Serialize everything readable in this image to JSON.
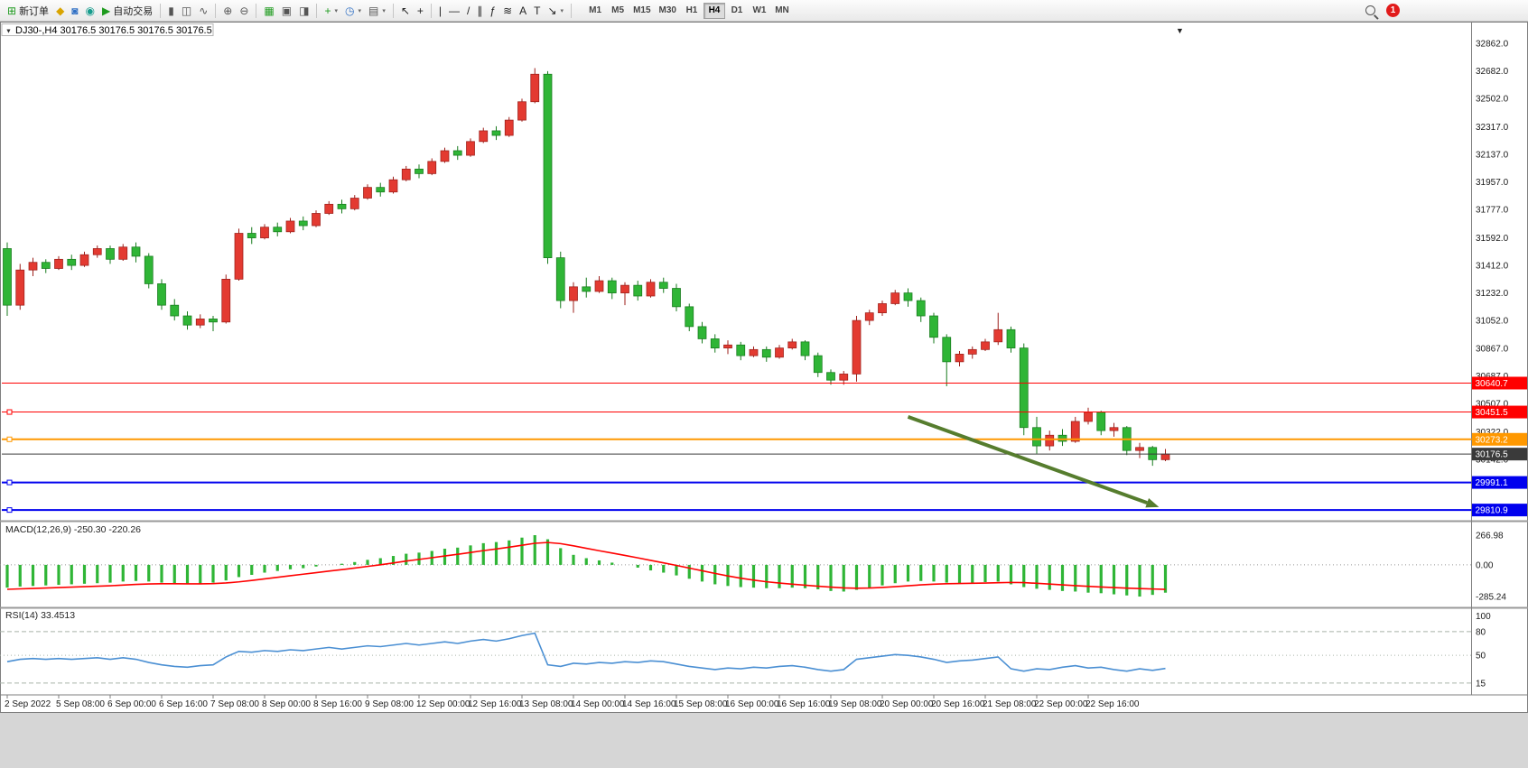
{
  "app": {
    "badge_count": "1"
  },
  "toolbar": {
    "groups": [
      [
        {
          "name": "new-order",
          "glyph": "⊞",
          "color": "#1e9b1e",
          "label": "新订单"
        },
        {
          "name": "mql5-wizard",
          "glyph": "◆",
          "color": "#d9a400"
        },
        {
          "name": "open-profile",
          "glyph": "◙",
          "color": "#2f6fc4"
        },
        {
          "name": "community",
          "glyph": "◉",
          "color": "#169c8d"
        },
        {
          "name": "autotrading",
          "glyph": "▶",
          "color": "#1e9b1e",
          "label": "自动交易"
        }
      ],
      [
        {
          "name": "bar-chart-mode",
          "glyph": "▮",
          "color": "#555"
        },
        {
          "name": "candlestick-mode",
          "glyph": "◫",
          "color": "#555"
        },
        {
          "name": "line-chart-mode",
          "glyph": "∿",
          "color": "#555"
        }
      ],
      [
        {
          "name": "zoom-in",
          "glyph": "⊕",
          "color": "#555"
        },
        {
          "name": "zoom-out",
          "glyph": "⊖",
          "color": "#555"
        }
      ],
      [
        {
          "name": "tile-windows",
          "glyph": "▦",
          "color": "#1e9b1e"
        },
        {
          "name": "new-chart",
          "glyph": "▣",
          "color": "#555"
        },
        {
          "name": "chart-profiles",
          "glyph": "◨",
          "color": "#555"
        }
      ],
      [
        {
          "name": "indicators",
          "glyph": "+",
          "color": "#1e9b1e",
          "dropdown": true
        },
        {
          "name": "periods",
          "glyph": "◷",
          "color": "#2f6fc4",
          "dropdown": true
        },
        {
          "name": "templates",
          "glyph": "▤",
          "color": "#555",
          "dropdown": true
        }
      ],
      [
        {
          "name": "cursor",
          "glyph": "↖",
          "color": "#222"
        },
        {
          "name": "crosshair",
          "glyph": "+",
          "color": "#222"
        }
      ],
      [
        {
          "name": "vertical-line",
          "glyph": "|",
          "color": "#222"
        },
        {
          "name": "horizontal-line",
          "glyph": "—",
          "color": "#222"
        },
        {
          "name": "trendline",
          "glyph": "/",
          "color": "#222"
        },
        {
          "name": "equidistant-channel",
          "glyph": "∥",
          "color": "#222"
        },
        {
          "name": "fibonacci",
          "glyph": "ƒ",
          "color": "#222"
        },
        {
          "name": "shapes",
          "glyph": "≋",
          "color": "#222"
        },
        {
          "name": "text",
          "glyph": "A",
          "color": "#222"
        },
        {
          "name": "text-label",
          "glyph": "T",
          "color": "#222"
        },
        {
          "name": "arrows",
          "glyph": "↘",
          "color": "#222",
          "dropdown": true
        }
      ]
    ],
    "timeframes": [
      "M1",
      "M5",
      "M15",
      "M30",
      "H1",
      "H4",
      "D1",
      "W1",
      "MN"
    ],
    "active_timeframe": "H4"
  },
  "chart": {
    "symbol": "DJ30-",
    "timeframe": "H4",
    "full_title": "DJ30-,H4 30176.5 30176.5 30176.5 30176.5",
    "marker_glyph": "▼"
  },
  "chart_data": [
    {
      "type": "candlestick",
      "symbol": "DJ30-",
      "timeframe": "H4",
      "ylim": [
        29735,
        32909
      ],
      "colors": {
        "up": "#e33a31",
        "down": "#2fb536",
        "up_edge": "#9c1f1a",
        "down_edge": "#177a1d"
      },
      "price_axis_labels": [
        "32862.0",
        "32682.0",
        "32502.0",
        "32317.0",
        "32137.0",
        "31957.0",
        "31777.0",
        "31592.0",
        "31412.0",
        "31232.0",
        "31052.0",
        "30867.0",
        "30687.0",
        "30507.0",
        "30322.0",
        "30142.0"
      ],
      "time_axis_labels": [
        [
          0,
          "2 Sep 2022"
        ],
        [
          4,
          "5 Sep 08:00"
        ],
        [
          8,
          "6 Sep 00:00"
        ],
        [
          12,
          "6 Sep 16:00"
        ],
        [
          16,
          "7 Sep 08:00"
        ],
        [
          20,
          "8 Sep 00:00"
        ],
        [
          24,
          "8 Sep 16:00"
        ],
        [
          28,
          "9 Sep 08:00"
        ],
        [
          32,
          "12 Sep 00:00"
        ],
        [
          36,
          "12 Sep 16:00"
        ],
        [
          40,
          "13 Sep 08:00"
        ],
        [
          44,
          "14 Sep 00:00"
        ],
        [
          48,
          "14 Sep 16:00"
        ],
        [
          52,
          "15 Sep 08:00"
        ],
        [
          56,
          "16 Sep 00:00"
        ],
        [
          60,
          "16 Sep 16:00"
        ],
        [
          64,
          "19 Sep 08:00"
        ],
        [
          68,
          "20 Sep 00:00"
        ],
        [
          72,
          "20 Sep 16:00"
        ],
        [
          76,
          "21 Sep 08:00"
        ],
        [
          80,
          "22 Sep 00:00"
        ],
        [
          84,
          "22 Sep 16:00"
        ]
      ],
      "bars": [
        [
          31520,
          31560,
          31080,
          31150
        ],
        [
          31150,
          31420,
          31120,
          31380
        ],
        [
          31380,
          31460,
          31340,
          31430
        ],
        [
          31430,
          31450,
          31360,
          31390
        ],
        [
          31390,
          31470,
          31380,
          31450
        ],
        [
          31450,
          31480,
          31380,
          31410
        ],
        [
          31410,
          31500,
          31400,
          31480
        ],
        [
          31480,
          31540,
          31460,
          31520
        ],
        [
          31520,
          31540,
          31420,
          31450
        ],
        [
          31450,
          31550,
          31440,
          31530
        ],
        [
          31530,
          31560,
          31430,
          31470
        ],
        [
          31470,
          31490,
          31260,
          31290
        ],
        [
          31290,
          31320,
          31120,
          31150
        ],
        [
          31150,
          31190,
          31050,
          31080
        ],
        [
          31080,
          31110,
          30990,
          31020
        ],
        [
          31020,
          31090,
          31000,
          31060
        ],
        [
          31060,
          31080,
          30980,
          31040
        ],
        [
          31040,
          31350,
          31030,
          31320
        ],
        [
          31320,
          31650,
          31310,
          31620
        ],
        [
          31620,
          31660,
          31550,
          31590
        ],
        [
          31590,
          31680,
          31580,
          31660
        ],
        [
          31660,
          31690,
          31600,
          31630
        ],
        [
          31630,
          31720,
          31620,
          31700
        ],
        [
          31700,
          31730,
          31640,
          31670
        ],
        [
          31670,
          31770,
          31660,
          31750
        ],
        [
          31750,
          31830,
          31740,
          31810
        ],
        [
          31810,
          31840,
          31750,
          31780
        ],
        [
          31780,
          31870,
          31770,
          31850
        ],
        [
          31850,
          31940,
          31840,
          31920
        ],
        [
          31920,
          31950,
          31860,
          31890
        ],
        [
          31890,
          31990,
          31880,
          31970
        ],
        [
          31970,
          32060,
          31960,
          32040
        ],
        [
          32040,
          32070,
          31980,
          32010
        ],
        [
          32010,
          32110,
          32000,
          32090
        ],
        [
          32090,
          32180,
          32080,
          32160
        ],
        [
          32160,
          32190,
          32100,
          32130
        ],
        [
          32130,
          32240,
          32120,
          32220
        ],
        [
          32220,
          32310,
          32210,
          32290
        ],
        [
          32290,
          32320,
          32230,
          32260
        ],
        [
          32260,
          32380,
          32250,
          32360
        ],
        [
          32360,
          32500,
          32350,
          32480
        ],
        [
          32480,
          32700,
          32470,
          32660
        ],
        [
          32660,
          32680,
          31420,
          31460
        ],
        [
          31460,
          31500,
          31130,
          31180
        ],
        [
          31180,
          31300,
          31100,
          31270
        ],
        [
          31270,
          31330,
          31200,
          31240
        ],
        [
          31240,
          31340,
          31230,
          31310
        ],
        [
          31310,
          31330,
          31190,
          31230
        ],
        [
          31230,
          31300,
          31150,
          31280
        ],
        [
          31280,
          31310,
          31180,
          31210
        ],
        [
          31210,
          31320,
          31200,
          31300
        ],
        [
          31300,
          31330,
          31230,
          31260
        ],
        [
          31260,
          31290,
          31110,
          31140
        ],
        [
          31140,
          31160,
          30980,
          31010
        ],
        [
          31010,
          31040,
          30900,
          30930
        ],
        [
          30930,
          30960,
          30840,
          30870
        ],
        [
          30870,
          30920,
          30830,
          30890
        ],
        [
          30890,
          30910,
          30790,
          30820
        ],
        [
          30820,
          30880,
          30810,
          30860
        ],
        [
          30860,
          30880,
          30780,
          30810
        ],
        [
          30810,
          30890,
          30800,
          30870
        ],
        [
          30870,
          30930,
          30860,
          30910
        ],
        [
          30910,
          30920,
          30790,
          30820
        ],
        [
          30820,
          30840,
          30680,
          30710
        ],
        [
          30710,
          30730,
          30630,
          30660
        ],
        [
          30660,
          30720,
          30630,
          30700
        ],
        [
          30700,
          31080,
          30650,
          31050
        ],
        [
          31050,
          31120,
          31020,
          31100
        ],
        [
          31100,
          31180,
          31080,
          31160
        ],
        [
          31160,
          31250,
          31150,
          31230
        ],
        [
          31230,
          31260,
          31140,
          31180
        ],
        [
          31180,
          31200,
          31040,
          31080
        ],
        [
          31080,
          31100,
          30900,
          30940
        ],
        [
          30940,
          30960,
          30620,
          30780
        ],
        [
          30780,
          30850,
          30750,
          30830
        ],
        [
          30830,
          30880,
          30800,
          30860
        ],
        [
          30860,
          30930,
          30850,
          30910
        ],
        [
          30910,
          31100,
          30890,
          30990
        ],
        [
          30990,
          31010,
          30840,
          30870
        ],
        [
          30870,
          30900,
          30300,
          30350
        ],
        [
          30350,
          30420,
          30180,
          30230
        ],
        [
          30230,
          30330,
          30200,
          30300
        ],
        [
          30300,
          30340,
          30230,
          30260
        ],
        [
          30260,
          30420,
          30250,
          30390
        ],
        [
          30390,
          30480,
          30370,
          30450
        ],
        [
          30450,
          30460,
          30300,
          30330
        ],
        [
          30330,
          30380,
          30290,
          30350
        ],
        [
          30350,
          30360,
          30170,
          30200
        ],
        [
          30200,
          30250,
          30150,
          30220
        ],
        [
          30220,
          30230,
          30100,
          30140
        ],
        [
          30140,
          30210,
          30130,
          30176.5
        ]
      ],
      "levels": [
        {
          "price": 30640.7,
          "color": "#ff0000",
          "width": 1,
          "label": "30640.7",
          "handle": false
        },
        {
          "price": 30451.5,
          "color": "#ff0000",
          "width": 1,
          "label": "30451.5",
          "handle": true
        },
        {
          "price": 30273.2,
          "color": "#ff9800",
          "width": 2,
          "label": "30273.2",
          "handle": true
        },
        {
          "price": 30176.5,
          "color": "#3a3a3a",
          "width": 1,
          "label": "30176.5",
          "handle": false
        },
        {
          "price": 29991.1,
          "color": "#0000ee",
          "width": 2,
          "label": "29991.1",
          "handle": true
        },
        {
          "price": 29810.9,
          "color": "#0000ee",
          "width": 2,
          "label": "29810.9",
          "handle": true
        }
      ],
      "arrow": {
        "from_bar": 70,
        "from_price": 30420,
        "to_bar": 89.5,
        "to_price": 29830,
        "color": "#567d2e"
      }
    },
    {
      "type": "macd",
      "label": "MACD(12,26,9) -250.30 -220.26",
      "current_macd": -250.3,
      "current_signal": -220.26,
      "ylim": [
        -285.24,
        266.98
      ],
      "histogram_color": "#2fb536",
      "signal_color": "#ff0000",
      "y_axis_labels": [
        "266.98",
        "0.00",
        "-285.24"
      ],
      "histogram": [
        -205,
        -195,
        -190,
        -185,
        -180,
        -175,
        -170,
        -165,
        -160,
        -150,
        -145,
        -150,
        -160,
        -170,
        -175,
        -170,
        -160,
        -140,
        -110,
        -90,
        -70,
        -55,
        -40,
        -30,
        -15,
        0,
        10,
        25,
        45,
        60,
        80,
        100,
        110,
        125,
        145,
        155,
        175,
        195,
        205,
        220,
        245,
        266.98,
        230,
        150,
        90,
        60,
        40,
        20,
        0,
        -25,
        -50,
        -70,
        -95,
        -125,
        -150,
        -175,
        -190,
        -200,
        -205,
        -210,
        -210,
        -205,
        -210,
        -220,
        -235,
        -240,
        -225,
        -205,
        -185,
        -165,
        -150,
        -145,
        -150,
        -160,
        -165,
        -160,
        -155,
        -150,
        -175,
        -200,
        -215,
        -225,
        -235,
        -240,
        -250,
        -255,
        -265,
        -275,
        -285.24,
        -270,
        -250.3
      ],
      "signal": [
        -220,
        -216,
        -212,
        -208,
        -204,
        -200,
        -196,
        -192,
        -188,
        -182,
        -176,
        -172,
        -170,
        -170,
        -171,
        -171,
        -169,
        -163,
        -153,
        -140,
        -126,
        -112,
        -98,
        -84,
        -70,
        -56,
        -43,
        -29,
        -14,
        1,
        17,
        34,
        49,
        64,
        80,
        95,
        111,
        128,
        143,
        159,
        176,
        194,
        201,
        191,
        171,
        149,
        127,
        106,
        85,
        63,
        40,
        18,
        -5,
        -29,
        -53,
        -77,
        -100,
        -120,
        -137,
        -152,
        -164,
        -174,
        -183,
        -192,
        -200,
        -207,
        -210,
        -208,
        -203,
        -196,
        -188,
        -180,
        -174,
        -170,
        -168,
        -166,
        -164,
        -161,
        -158,
        -160,
        -166,
        -173,
        -180,
        -187,
        -193,
        -199,
        -204,
        -209,
        -213,
        -217,
        -220.26
      ]
    },
    {
      "type": "rsi",
      "label": "RSI(14) 33.4513",
      "current": 33.4513,
      "ylim": [
        0,
        100
      ],
      "levels": [
        80,
        50,
        15
      ],
      "y_axis_labels": [
        "100",
        "80",
        "50",
        "15"
      ],
      "line_color": "#4a8fd3",
      "values": [
        42,
        45,
        46,
        45,
        46,
        45,
        46,
        47,
        45,
        47,
        45,
        41,
        38,
        36,
        35,
        37,
        38,
        48,
        55,
        54,
        56,
        55,
        57,
        56,
        58,
        60,
        58,
        60,
        62,
        61,
        63,
        65,
        63,
        65,
        67,
        65,
        68,
        70,
        68,
        71,
        75,
        78,
        38,
        36,
        40,
        39,
        41,
        40,
        42,
        41,
        43,
        42,
        39,
        36,
        34,
        32,
        34,
        33,
        35,
        34,
        36,
        37,
        35,
        32,
        30,
        32,
        45,
        47,
        49,
        51,
        50,
        48,
        45,
        41,
        43,
        44,
        46,
        48,
        33,
        30,
        33,
        32,
        35,
        37,
        34,
        35,
        32,
        30,
        33,
        31,
        33.45
      ]
    }
  ]
}
